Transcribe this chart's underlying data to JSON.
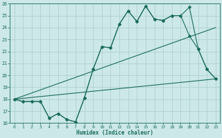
{
  "xlabel": "Humidex (Indice chaleur)",
  "bg_color": "#cce8e8",
  "grid_color": "#aacccc",
  "line_color": "#1a6b5a",
  "xlim": [
    -0.5,
    23.5
  ],
  "ylim": [
    16,
    26
  ],
  "xticks": [
    0,
    1,
    2,
    3,
    4,
    5,
    6,
    7,
    8,
    9,
    10,
    11,
    12,
    13,
    14,
    15,
    16,
    17,
    18,
    19,
    20,
    21,
    22,
    23
  ],
  "yticks": [
    16,
    17,
    18,
    19,
    20,
    21,
    22,
    23,
    24,
    25,
    26
  ],
  "line1_x": [
    0,
    1,
    2,
    3,
    4,
    5,
    6,
    7,
    8,
    9,
    10,
    11,
    12,
    13,
    14,
    15,
    16,
    17,
    18,
    19,
    20,
    21,
    22,
    23
  ],
  "line1_y": [
    18.0,
    17.8,
    17.8,
    17.8,
    16.4,
    16.8,
    16.3,
    16.1,
    18.1,
    20.5,
    22.4,
    22.3,
    24.3,
    25.4,
    24.5,
    25.8,
    24.7,
    24.6,
    25.0,
    25.0,
    25.7,
    22.2,
    20.5,
    19.7
  ],
  "line2_x": [
    0,
    1,
    2,
    3,
    4,
    5,
    6,
    7,
    8,
    9,
    10,
    11,
    12,
    13,
    14,
    15,
    16,
    17,
    18,
    19,
    20,
    21,
    22,
    23
  ],
  "line2_y": [
    18.0,
    17.8,
    17.8,
    17.8,
    16.4,
    16.8,
    16.3,
    16.1,
    18.1,
    20.5,
    22.4,
    22.3,
    24.3,
    25.4,
    24.5,
    25.8,
    24.7,
    24.6,
    25.0,
    25.0,
    23.3,
    22.2,
    20.5,
    19.7
  ],
  "line3_x": [
    0,
    23
  ],
  "line3_y": [
    18.0,
    24.0
  ],
  "line4_x": [
    0,
    23
  ],
  "line4_y": [
    18.0,
    19.7
  ]
}
